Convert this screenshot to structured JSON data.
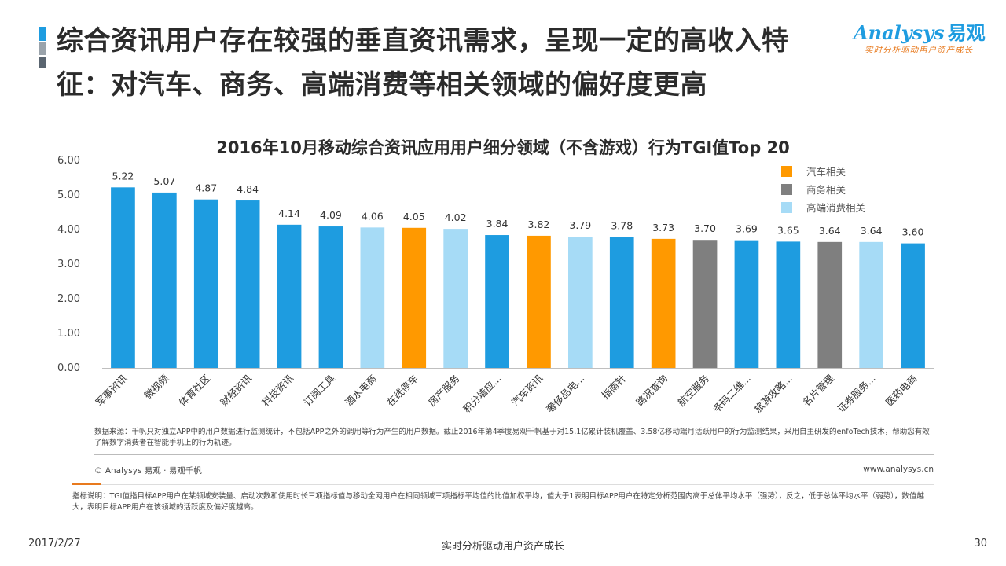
{
  "header": {
    "title": "综合资讯用户存在较强的垂直资讯需求，呈现一定的高收入特征：对汽车、商务、高端消费等相关领域的偏好度更高"
  },
  "logo": {
    "brand": "Analysys",
    "brand_cn": "易观",
    "tagline": "实时分析驱动用户资产成长"
  },
  "colors": {
    "default_blue": "#1E9CE0",
    "auto": "#FF9900",
    "business": "#7F7F7F",
    "luxury": "#A6DBF6",
    "accent_orange": "#E87A1E"
  },
  "chart_data": {
    "type": "bar",
    "title": "2016年10月移动综合资讯应用用户细分领域（不含游戏）行为TGI值Top 20",
    "ylim": [
      0,
      6
    ],
    "yticks": [
      "0.00",
      "1.00",
      "2.00",
      "3.00",
      "4.00",
      "5.00",
      "6.00"
    ],
    "grid": false,
    "legend_position": "top-right",
    "legend": [
      {
        "label": "汽车相关",
        "color": "#FF9900"
      },
      {
        "label": "商务相关",
        "color": "#7F7F7F"
      },
      {
        "label": "高端消费相关",
        "color": "#A6DBF6"
      }
    ],
    "categories": [
      "军事资讯",
      "微视频",
      "体育社区",
      "财经资讯",
      "科技资讯",
      "订阅工具",
      "酒水电商",
      "在线停车",
      "房产服务",
      "积分墙应...",
      "汽车资讯",
      "奢侈品电...",
      "指南针",
      "路况查询",
      "航空服务",
      "条码二维...",
      "旅游攻略...",
      "名片管理",
      "证券服务...",
      "医药电商"
    ],
    "values": [
      5.22,
      5.07,
      4.87,
      4.84,
      4.14,
      4.09,
      4.06,
      4.05,
      4.02,
      3.84,
      3.82,
      3.79,
      3.78,
      3.73,
      3.7,
      3.69,
      3.65,
      3.64,
      3.64,
      3.6
    ],
    "value_labels": [
      "5.22",
      "5.07",
      "4.87",
      "4.84",
      "4.14",
      "4.09",
      "4.06",
      "4.05",
      "4.02",
      "3.84",
      "3.82",
      "3.79",
      "3.78",
      "3.73",
      "3.70",
      "3.69",
      "3.65",
      "3.64",
      "3.64",
      "3.60"
    ],
    "bar_colors": [
      "#1E9CE0",
      "#1E9CE0",
      "#1E9CE0",
      "#1E9CE0",
      "#1E9CE0",
      "#1E9CE0",
      "#A6DBF6",
      "#FF9900",
      "#A6DBF6",
      "#1E9CE0",
      "#FF9900",
      "#A6DBF6",
      "#1E9CE0",
      "#FF9900",
      "#7F7F7F",
      "#1E9CE0",
      "#1E9CE0",
      "#7F7F7F",
      "#A6DBF6",
      "#1E9CE0"
    ]
  },
  "notes": {
    "source": "数据来源：千帆只对独立APP中的用户数据进行监测统计，不包括APP之外的调用等行为产生的用户数据。截止2016年第4季度易观千帆基于对15.1亿累计装机覆盖、3.58亿移动端月活跃用户的行为监测结果，采用自主研发的enfoTech技术，帮助您有效了解数字消费者在智能手机上的行为轨迹。",
    "copyright": "© Analysys 易观 · 易观千帆",
    "website": "www.analysys.cn",
    "indicator": "指标说明：TGI值指目标APP用户在某领域安装量、启动次数和使用时长三项指标值与移动全网用户在相同领域三项指标平均值的比值加权平均，值大于1表明目标APP用户在特定分析范围内高于总体平均水平（强势），反之，低于总体平均水平（弱势），数值越大，表明目标APP用户在该领域的活跃度及偏好度越高。"
  },
  "footer": {
    "date": "2017/2/27",
    "center": "实时分析驱动用户资产成长",
    "page": "30"
  }
}
